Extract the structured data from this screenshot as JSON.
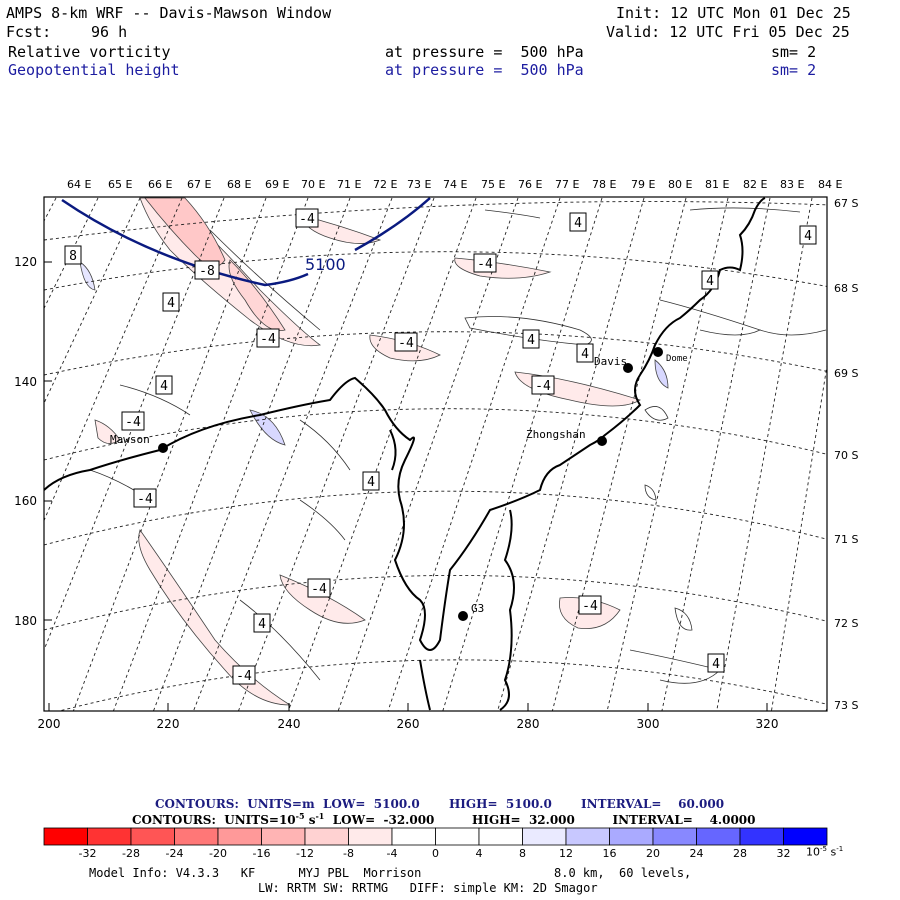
{
  "header": {
    "title": "AMPS 8-km WRF -- Davis-Mawson Window",
    "init": "Init: 12 UTC Mon 01 Dec 25",
    "fcst_label": "Fcst:",
    "fcst_value": "96 h",
    "valid": "Valid: 12 UTC Fri 05 Dec 25",
    "field1_name": "Relative vorticity",
    "field1_level": "at pressure =  500 hPa",
    "field1_sm": "sm= 2",
    "field2_name": "Geopotential height",
    "field2_level": "at pressure =  500 hPa",
    "field2_sm": "sm= 2"
  },
  "map": {
    "top_lon_labels": [
      "64 E",
      "65 E",
      "66 E",
      "67 E",
      "68 E",
      "69 E",
      "70 E",
      "71 E",
      "72 E",
      "73 E",
      "74 E",
      "75 E",
      "76 E",
      "77 E",
      "78 E",
      "79 E",
      "80 E",
      "81 E",
      "82 E",
      "83 E",
      "84 E"
    ],
    "right_lat_labels": [
      "67 S",
      "68 S",
      "69 S",
      "70 S",
      "71 S",
      "72 S",
      "73 S"
    ],
    "left_y_ticks": [
      "120",
      "140",
      "160",
      "180"
    ],
    "bottom_x_ticks": [
      "200",
      "220",
      "240",
      "260",
      "280",
      "300",
      "320"
    ],
    "stations": [
      {
        "name": "Mawson"
      },
      {
        "name": "Davis"
      },
      {
        "name": "Zhongshan"
      },
      {
        "name": "G3"
      },
      {
        "name": "Dome"
      }
    ],
    "height_contour_label": "5100",
    "vorticity_labels": [
      "4",
      "-4",
      "8",
      "-8"
    ]
  },
  "legend": {
    "contours1": "CONTOURS:  UNITS=m  LOW=  5100.0       HIGH=  5100.0       INTERVAL=    60.000",
    "contours2": "CONTOURS:  UNITS=10",
    "contours2_exp": "-5",
    "contours2_rest": " s",
    "contours2_exp2": "-1",
    "contours2_tail": "  LOW=  -32.000         HIGH=  32.000         INTERVAL=    4.0000",
    "colorbar_ticks": [
      "-32",
      "-28",
      "-24",
      "-20",
      "-16",
      "-12",
      "-8",
      "-4",
      "0",
      "4",
      "8",
      "12",
      "16",
      "20",
      "24",
      "28",
      "32"
    ],
    "colorbar_units": "10",
    "colorbar_units_exp": "-5",
    "colorbar_units_s": "s",
    "colorbar_units_exp2": "-1",
    "colorbar_colors": [
      "#ff0000",
      "#ff3333",
      "#ff5555",
      "#ff7777",
      "#ff9999",
      "#ffb4b4",
      "#ffd2d2",
      "#ffeaea",
      "#ffffff",
      "#ffffff",
      "#eaeaff",
      "#c8c8ff",
      "#aaaaff",
      "#8888ff",
      "#6666ff",
      "#3333ff",
      "#0000ff"
    ]
  },
  "info": {
    "line1a": "Model Info: V4.3.3   KF      MYJ PBL  Morrison",
    "line1b": "8.0 km,  60 levels,",
    "line2": "LW: RRTM SW: RRTMG   DIFF: simple KM: 2D Smagor"
  }
}
